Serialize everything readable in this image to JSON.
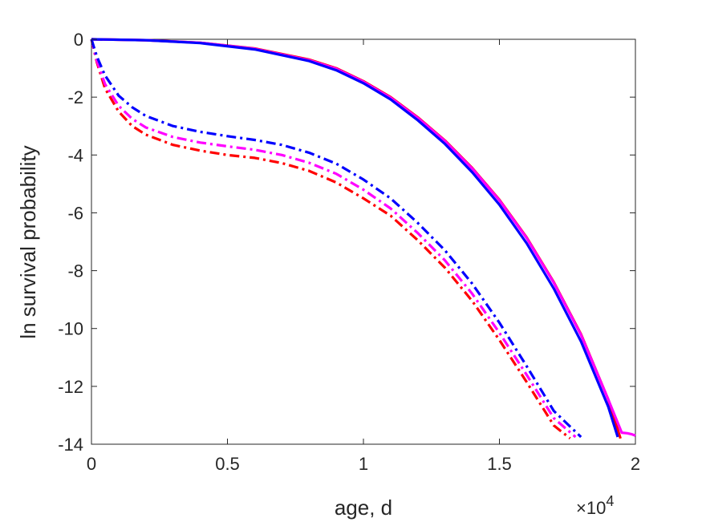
{
  "chart_data": {
    "type": "line",
    "xlabel": "age, d",
    "ylabel": "ln survival probability",
    "x_exponent_label": "×10",
    "x_exponent_power": "4",
    "xlim": [
      0,
      20000
    ],
    "ylim": [
      -14,
      0
    ],
    "x_ticks": [
      0,
      5000,
      10000,
      15000,
      20000
    ],
    "x_tick_labels": [
      "0",
      "0.5",
      "1",
      "1.5",
      "2"
    ],
    "y_ticks": [
      0,
      -2,
      -4,
      -6,
      -8,
      -10,
      -12,
      -14
    ],
    "y_tick_labels": [
      "0",
      "-2",
      "-4",
      "-6",
      "-8",
      "-10",
      "-12",
      "-14"
    ],
    "grid": false,
    "series": [
      {
        "color": "#ff0000",
        "style": "solid",
        "x": [
          0,
          2000,
          4000,
          6000,
          8000,
          9000,
          10000,
          11000,
          12000,
          13000,
          14000,
          15000,
          16000,
          17000,
          18000,
          19000,
          19450
        ],
        "y": [
          0,
          -0.03,
          -0.12,
          -0.32,
          -0.7,
          -1.0,
          -1.45,
          -2.0,
          -2.7,
          -3.5,
          -4.45,
          -5.55,
          -6.85,
          -8.4,
          -10.2,
          -12.45,
          -13.8
        ]
      },
      {
        "color": "#ff00ff",
        "style": "solid",
        "x": [
          0,
          2000,
          4000,
          6000,
          8000,
          9000,
          10000,
          11000,
          12000,
          13000,
          14000,
          15000,
          16000,
          17000,
          18000,
          19000,
          19500,
          19700,
          19850,
          20000
        ],
        "y": [
          0,
          -0.03,
          -0.12,
          -0.33,
          -0.72,
          -1.02,
          -1.47,
          -2.02,
          -2.72,
          -3.52,
          -4.47,
          -5.57,
          -6.87,
          -8.42,
          -10.22,
          -12.45,
          -13.6,
          -13.62,
          -13.65,
          -13.7
        ]
      },
      {
        "color": "#0000ff",
        "style": "solid",
        "x": [
          0,
          2000,
          4000,
          6000,
          8000,
          9000,
          10000,
          11000,
          12000,
          13000,
          14000,
          15000,
          16000,
          17000,
          18000,
          19000,
          19350
        ],
        "y": [
          0,
          -0.03,
          -0.13,
          -0.35,
          -0.75,
          -1.07,
          -1.52,
          -2.08,
          -2.8,
          -3.62,
          -4.6,
          -5.72,
          -7.05,
          -8.62,
          -10.45,
          -12.7,
          -13.75
        ]
      },
      {
        "color": "#ff0000",
        "style": "dashdot",
        "x": [
          0,
          200,
          500,
          1000,
          1500,
          2000,
          3000,
          4000,
          5000,
          6000,
          7000,
          8000,
          9000,
          10000,
          11000,
          12000,
          13000,
          14000,
          15000,
          16000,
          17000,
          17600
        ],
        "y": [
          0,
          -0.8,
          -1.7,
          -2.5,
          -3.0,
          -3.3,
          -3.65,
          -3.85,
          -4.0,
          -4.1,
          -4.28,
          -4.55,
          -4.95,
          -5.5,
          -6.1,
          -6.95,
          -7.9,
          -9.05,
          -10.4,
          -11.85,
          -13.35,
          -13.8
        ]
      },
      {
        "color": "#ff00ff",
        "style": "dashdot",
        "x": [
          0,
          200,
          500,
          1000,
          1500,
          2000,
          3000,
          4000,
          5000,
          6000,
          7000,
          8000,
          9000,
          10000,
          11000,
          12000,
          13000,
          14000,
          15000,
          16000,
          17000,
          17800
        ],
        "y": [
          0,
          -0.75,
          -1.55,
          -2.3,
          -2.75,
          -3.05,
          -3.38,
          -3.57,
          -3.7,
          -3.82,
          -4.0,
          -4.27,
          -4.65,
          -5.2,
          -5.85,
          -6.7,
          -7.65,
          -8.8,
          -10.15,
          -11.6,
          -13.1,
          -13.75
        ]
      },
      {
        "color": "#0000ff",
        "style": "dashdot",
        "x": [
          0,
          200,
          500,
          1000,
          1500,
          2000,
          3000,
          4000,
          5000,
          6000,
          7000,
          8000,
          9000,
          10000,
          11000,
          12000,
          13000,
          14000,
          15000,
          16000,
          17000,
          18000
        ],
        "y": [
          0,
          -0.6,
          -1.25,
          -1.95,
          -2.35,
          -2.65,
          -3.0,
          -3.2,
          -3.35,
          -3.48,
          -3.65,
          -3.92,
          -4.3,
          -4.85,
          -5.5,
          -6.35,
          -7.3,
          -8.45,
          -9.8,
          -11.3,
          -12.85,
          -13.75
        ]
      }
    ]
  }
}
